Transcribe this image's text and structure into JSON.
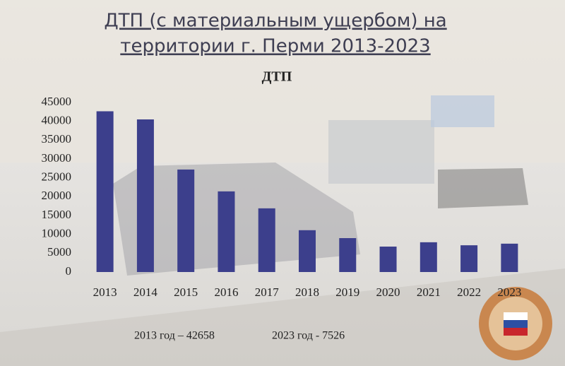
{
  "chart_data": {
    "type": "bar",
    "title": [
      "ДТП (с материальным ущербом) на",
      "территории г. Перми 2013-2023"
    ],
    "subtitle": "ДТП",
    "categories": [
      "2013",
      "2014",
      "2015",
      "2016",
      "2017",
      "2018",
      "2019",
      "2020",
      "2021",
      "2022",
      "2023"
    ],
    "values": [
      42658,
      40500,
      27200,
      21400,
      16900,
      11100,
      9000,
      6750,
      7900,
      7100,
      7526
    ],
    "color": "#3c3f8c",
    "ylim": [
      0,
      45000
    ],
    "yticks": [
      0,
      5000,
      10000,
      15000,
      20000,
      25000,
      30000,
      35000,
      40000,
      45000
    ],
    "grid": false,
    "annotations": [
      "2013 год – 42658",
      "2023 год - 7526"
    ]
  }
}
